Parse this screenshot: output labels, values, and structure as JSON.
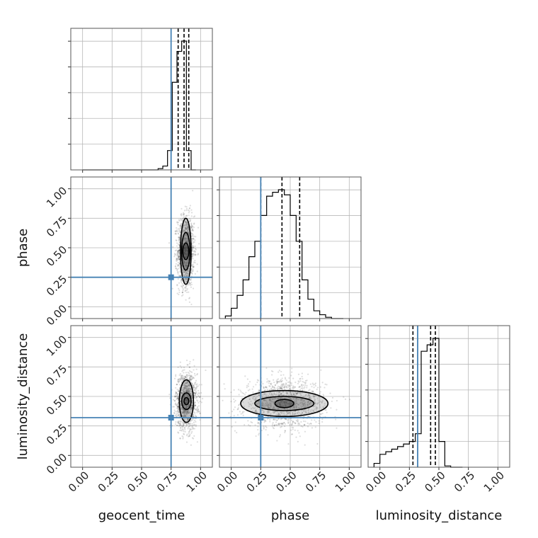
{
  "chart_data": {
    "type": "corner",
    "parameters": [
      "geocent_time",
      "phase",
      "luminosity_distance"
    ],
    "axis_range": [
      -0.1,
      1.1
    ],
    "tick_labels": [
      "0.00",
      "0.25",
      "0.50",
      "0.75",
      "1.00"
    ],
    "tick_values": [
      0.0,
      0.25,
      0.5,
      0.75,
      1.0
    ],
    "grid": true,
    "truth": {
      "geocent_time": 0.75,
      "phase": 0.25,
      "luminosity_distance": 0.32
    },
    "truth_color": "#4682b4",
    "histograms": {
      "geocent_time": {
        "edges": [
          0.0,
          0.04,
          0.08,
          0.12,
          0.16,
          0.2,
          0.24,
          0.28,
          0.32,
          0.36,
          0.4,
          0.44,
          0.48,
          0.52,
          0.56,
          0.6,
          0.64,
          0.68,
          0.72,
          0.76,
          0.8,
          0.84,
          0.88,
          0.92,
          0.96
        ],
        "counts": [
          0,
          0,
          0,
          0,
          0,
          0,
          0,
          0,
          0,
          0,
          0,
          0,
          0,
          0,
          0,
          0,
          0.01,
          0.03,
          0.15,
          0.68,
          0.92,
          1.0,
          0.15,
          0.0
        ],
        "quantiles": [
          0.81,
          0.86,
          0.9
        ]
      },
      "phase": {
        "edges": [
          -0.05,
          0.0,
          0.05,
          0.1,
          0.15,
          0.2,
          0.25,
          0.3,
          0.35,
          0.4,
          0.45,
          0.5,
          0.55,
          0.6,
          0.65,
          0.7,
          0.75,
          0.8,
          0.85,
          0.9,
          0.95
        ],
        "counts": [
          0.02,
          0.08,
          0.18,
          0.3,
          0.48,
          0.6,
          0.8,
          0.95,
          0.98,
          1.0,
          0.96,
          0.8,
          0.6,
          0.3,
          0.15,
          0.06,
          0.03,
          0.01,
          0.0,
          0.0
        ],
        "quantiles": [
          0.25,
          0.43,
          0.58
        ]
      },
      "luminosity_distance": {
        "edges": [
          -0.05,
          0.0,
          0.05,
          0.1,
          0.15,
          0.2,
          0.25,
          0.3,
          0.35,
          0.4,
          0.45,
          0.5,
          0.55,
          0.6,
          0.65,
          0.7
        ],
        "counts": [
          0.03,
          0.1,
          0.12,
          0.14,
          0.16,
          0.18,
          0.2,
          0.26,
          0.9,
          0.95,
          1.0,
          0.2,
          0.01,
          0.0,
          0.0
        ],
        "quantiles": [
          0.28,
          0.43,
          0.47
        ]
      }
    },
    "joint_panels": [
      {
        "x": "geocent_time",
        "y": "phase",
        "center": [
          0.875,
          0.47
        ],
        "spread": [
          0.035,
          0.15
        ],
        "contour_levels": [
          {
            "rx": 0.025,
            "ry": 0.07
          },
          {
            "rx": 0.035,
            "ry": 0.16
          },
          {
            "rx": 0.045,
            "ry": 0.28
          }
        ]
      },
      {
        "x": "geocent_time",
        "y": "luminosity_distance",
        "center": [
          0.88,
          0.46
        ],
        "spread": [
          0.045,
          0.12
        ],
        "contour_levels": [
          {
            "rx": 0.02,
            "ry": 0.03
          },
          {
            "rx": 0.04,
            "ry": 0.07
          },
          {
            "rx": 0.06,
            "ry": 0.18
          }
        ]
      },
      {
        "x": "phase",
        "y": "luminosity_distance",
        "center": [
          0.45,
          0.44
        ],
        "spread": [
          0.17,
          0.1
        ],
        "contour_levels": [
          {
            "rx": 0.08,
            "ry": 0.035
          },
          {
            "rx": 0.25,
            "ry": 0.06
          },
          {
            "rx": 0.37,
            "ry": 0.11
          }
        ]
      }
    ]
  }
}
